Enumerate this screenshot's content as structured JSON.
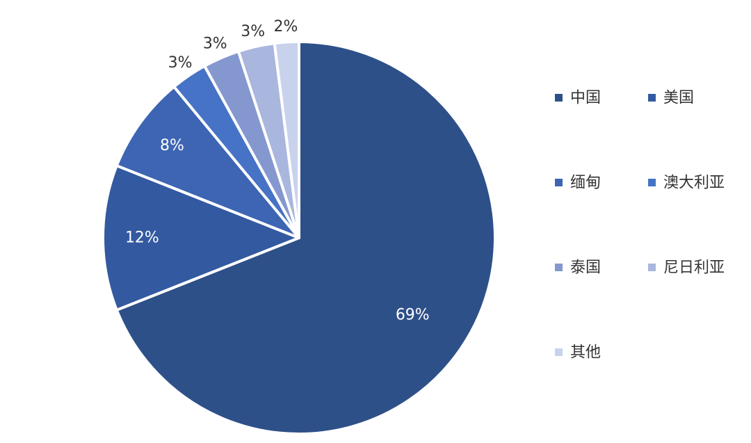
{
  "chart_data": {
    "type": "pie",
    "categories": [
      "中国",
      "美国",
      "缅甸",
      "澳大利亚",
      "泰国",
      "尼日利亚",
      "其他"
    ],
    "values": [
      69,
      12,
      8,
      3,
      3,
      3,
      2
    ],
    "value_labels": [
      "69%",
      "12%",
      "8%",
      "3%",
      "3%",
      "3%",
      "2%"
    ],
    "colors": [
      "#2e5089",
      "#3359a0",
      "#3d65b3",
      "#4673c6",
      "#8498cf",
      "#a9b6de",
      "#c9d2ec"
    ],
    "legend_position": "right",
    "start_angle": "12 o'clock",
    "direction": "clockwise"
  }
}
